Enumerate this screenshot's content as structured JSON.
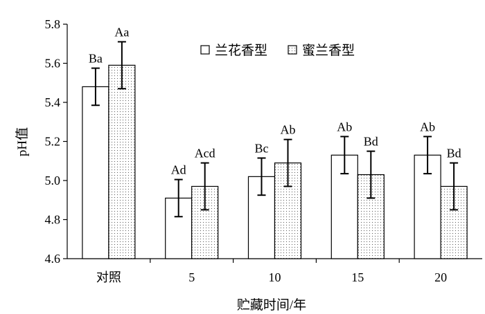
{
  "chart_data": {
    "type": "bar",
    "title": "",
    "xlabel": "贮藏时间/年",
    "ylabel": "pH值",
    "ylim": [
      4.6,
      5.8
    ],
    "yticks": [
      "4.6",
      "4.8",
      "5.0",
      "5.2",
      "5.4",
      "5.6",
      "5.8"
    ],
    "categories": [
      "对照",
      "5",
      "10",
      "15",
      "20"
    ],
    "legend_position": "top-right",
    "grid": false,
    "series": [
      {
        "name": "兰花香型",
        "fill": "plain",
        "color": "#ffffff",
        "values": [
          5.48,
          4.91,
          5.02,
          5.13,
          5.13
        ],
        "errors": [
          0.095,
          0.095,
          0.095,
          0.095,
          0.095
        ],
        "labels": [
          "Ba",
          "Ad",
          "Bc",
          "Ab",
          "Ab"
        ]
      },
      {
        "name": "蜜兰香型",
        "fill": "dotted",
        "color": "#ffffff",
        "values": [
          5.59,
          4.97,
          5.09,
          5.03,
          4.97
        ],
        "errors": [
          0.12,
          0.12,
          0.12,
          0.12,
          0.12
        ],
        "labels": [
          "Aa",
          "Acd",
          "Ab",
          "Bd",
          "Bd"
        ]
      }
    ]
  }
}
